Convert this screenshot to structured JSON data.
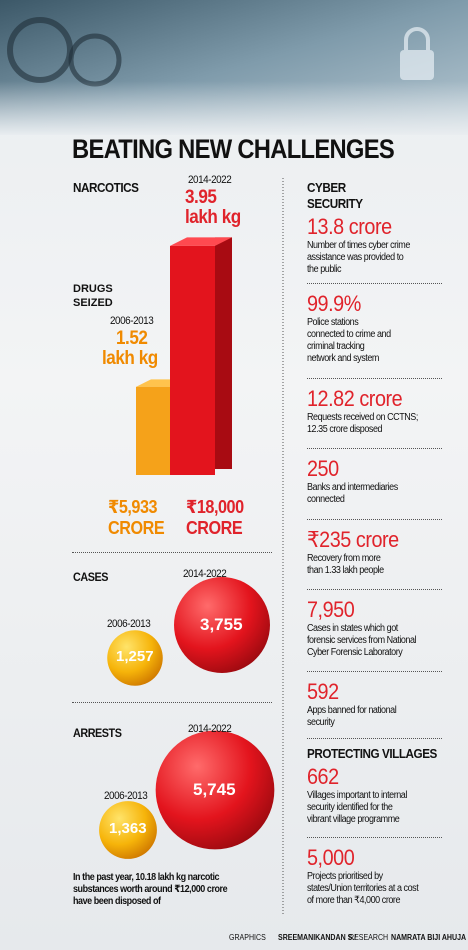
{
  "title": "BEATING NEW CHALLENGES",
  "narcotics": {
    "heading": "NARCOTICS",
    "drugs_label": [
      "DRUGS",
      "SEIZED"
    ],
    "drugs_seized": [
      {
        "period": "2006-2013",
        "value": 1.52,
        "label": [
          "1.52",
          "lakh kg"
        ],
        "worth": [
          "₹5,933",
          "CRORE"
        ]
      },
      {
        "period": "2014-2022",
        "value": 3.95,
        "label": [
          "3.95",
          "lakh kg"
        ],
        "worth": [
          "₹18,000",
          "CRORE"
        ]
      }
    ],
    "cases": {
      "heading": "CASES",
      "items": [
        {
          "period": "2006-2013",
          "value": 1257,
          "label": "1,257"
        },
        {
          "period": "2014-2022",
          "value": 3755,
          "label": "3,755"
        }
      ]
    },
    "arrests": {
      "heading": "ARRESTS",
      "items": [
        {
          "period": "2006-2013",
          "value": 1363,
          "label": "1,363"
        },
        {
          "period": "2014-2022",
          "value": 5745,
          "label": "5,745"
        }
      ]
    },
    "note": [
      "In the past year, 10.18 lakh kg narcotic",
      "substances worth around ₹12,000 crore",
      "have been disposed of"
    ]
  },
  "cyber": {
    "heading": [
      "CYBER",
      "SECURITY"
    ],
    "items": [
      {
        "figure": "13.8 crore",
        "text": [
          "Number of times cyber crime",
          "assistance was provided to",
          "the public"
        ]
      },
      {
        "figure": "99.9%",
        "text": [
          "Police stations",
          "connected to crime and",
          "criminal tracking",
          "network and system"
        ]
      },
      {
        "figure": "12.82 crore",
        "text": [
          "Requests received on CCTNS;",
          "12.35 crore disposed"
        ]
      },
      {
        "figure": "250",
        "text": [
          "Banks and intermediaries",
          "connected"
        ]
      },
      {
        "figure": "₹235 crore",
        "text": [
          "Recovery from more",
          "than 1.33 lakh people"
        ]
      },
      {
        "figure": "7,950",
        "text": [
          "Cases in states which got",
          "forensic services from National",
          "Cyber Forensic Laboratory"
        ]
      },
      {
        "figure": "592",
        "text": [
          "Apps banned for national",
          "security"
        ]
      }
    ]
  },
  "villages": {
    "heading": "PROTECTING VILLAGES",
    "items": [
      {
        "figure": "662",
        "text": [
          "Villages important to internal",
          "security identified for the",
          "vibrant village programme"
        ]
      },
      {
        "figure": "5,000",
        "text": [
          "Projects prioritised by",
          "states/Union territories at a cost",
          "of more than ₹4,000 crore"
        ]
      }
    ]
  },
  "credits": {
    "graphics_label": "GRAPHICS",
    "graphics": "SREEMANIKANDAN S./",
    "research_label": "RESEARCH",
    "research": "NAMRATA BIJI AHUJA"
  }
}
